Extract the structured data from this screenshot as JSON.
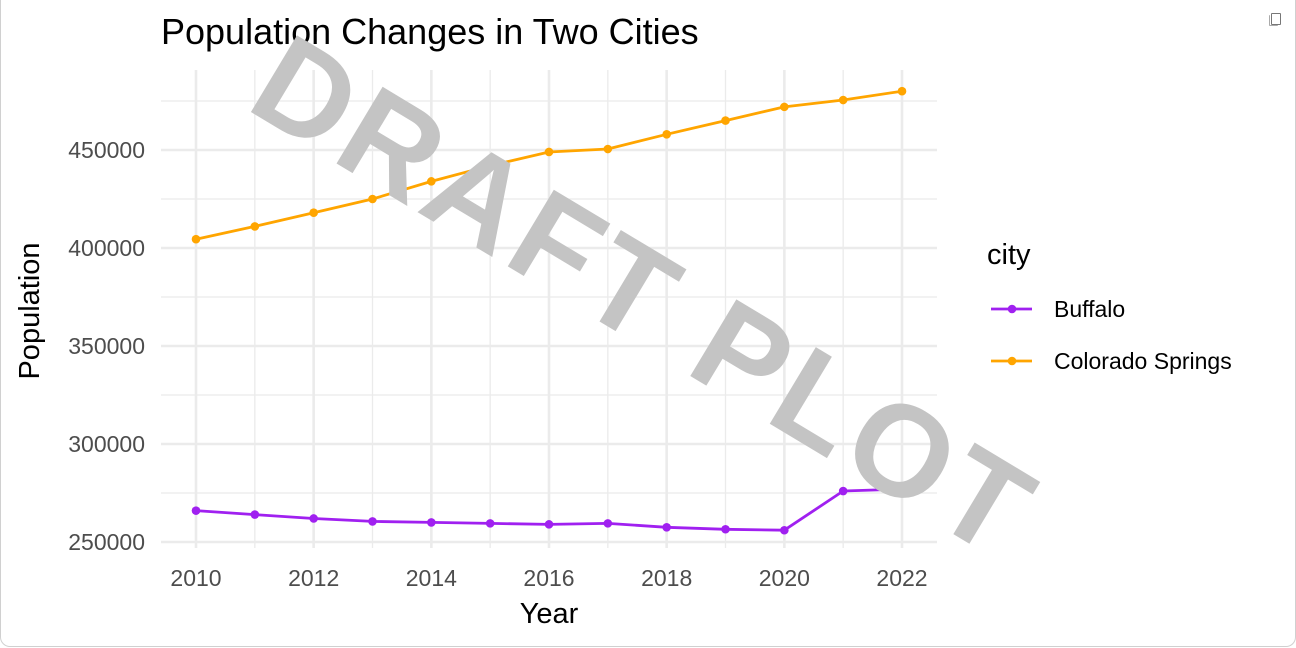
{
  "window": {
    "copy_icon": "copy-icon"
  },
  "chart_data": {
    "type": "line",
    "title": "Population Changes in Two Cities",
    "xlabel": "Year",
    "ylabel": "Population",
    "x": [
      2010,
      2011,
      2012,
      2013,
      2014,
      2015,
      2016,
      2017,
      2018,
      2019,
      2020,
      2021,
      2022
    ],
    "xlim": [
      2009.45,
      2022.55
    ],
    "ylim": [
      246500,
      488000
    ],
    "x_ticks": [
      2010,
      2012,
      2014,
      2016,
      2018,
      2020,
      2022
    ],
    "x_tick_labels": [
      "2010",
      "2012",
      "2014",
      "2016",
      "2018",
      "2020",
      "2022"
    ],
    "y_ticks": [
      250000,
      300000,
      350000,
      400000,
      450000
    ],
    "y_tick_labels": [
      "250000",
      "300000",
      "350000",
      "400000",
      "450000"
    ],
    "grid": true,
    "legend": {
      "title": "city",
      "position": "right"
    },
    "series": [
      {
        "name": "Buffalo",
        "color": "#a020f0",
        "values": [
          266000,
          264000,
          262000,
          260500,
          260000,
          259500,
          259000,
          259500,
          257500,
          256500,
          256000,
          276000,
          277000
        ]
      },
      {
        "name": "Colorado Springs",
        "color": "#ffa500",
        "values": [
          404500,
          411000,
          418000,
          425000,
          434000,
          442000,
          449000,
          450500,
          458000,
          465000,
          472000,
          475500,
          480000
        ]
      }
    ],
    "annotations": [
      {
        "type": "watermark",
        "text": "DRAFT PLOT",
        "color": "#c4c4c4"
      }
    ]
  }
}
